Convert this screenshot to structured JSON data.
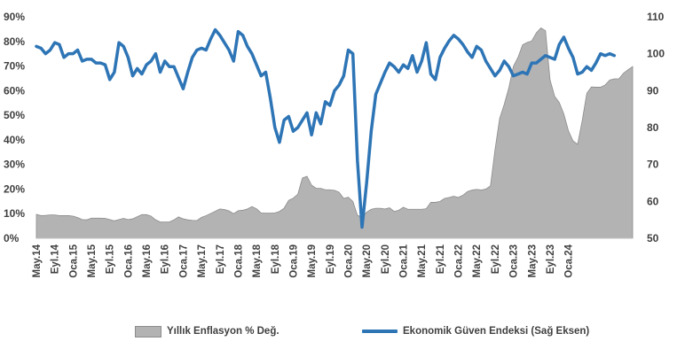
{
  "chart_data": {
    "type": "area+line",
    "x_labels": [
      "May.14",
      "Eyl.14",
      "Oca.15",
      "May.15",
      "Eyl.15",
      "Oca.16",
      "May.16",
      "Eyl.16",
      "Oca.17",
      "May.17",
      "Eyl.17",
      "Oca.18",
      "May.18",
      "Eyl.18",
      "Oca.19",
      "May.19",
      "Eyl.19",
      "Oca.20",
      "May.20",
      "Eyl.20",
      "Oca.21",
      "May.21",
      "Eyl.21",
      "Oca.22",
      "May.22",
      "Eyl.22",
      "Oca.23",
      "May.23",
      "Eyl.23",
      "Oca.24"
    ],
    "left_axis": {
      "ticks": [
        "0%",
        "10%",
        "20%",
        "30%",
        "40%",
        "50%",
        "60%",
        "70%",
        "80%",
        "90%"
      ],
      "min": 0,
      "max": 90
    },
    "right_axis": {
      "ticks": [
        "50",
        "60",
        "70",
        "80",
        "90",
        "100",
        "110"
      ],
      "min": 50,
      "max": 110
    },
    "legend_position": "bottom",
    "grid": false,
    "series": [
      {
        "name": "Yıllık Enflasyon % Değ.",
        "axis": "left",
        "type": "area",
        "color": "#b3b3b3",
        "values": [
          9.7,
          9.2,
          9.3,
          9.5,
          9.5,
          9.2,
          9.2,
          9.2,
          9.0,
          8.4,
          7.6,
          7.5,
          8.2,
          8.2,
          8.2,
          8.1,
          7.6,
          7.1,
          7.6,
          8.1,
          7.6,
          7.9,
          8.8,
          9.6,
          9.6,
          9.0,
          7.5,
          6.6,
          6.6,
          6.6,
          7.5,
          8.7,
          7.9,
          7.5,
          7.3,
          7.2,
          8.5,
          9.2,
          10.1,
          11.0,
          11.9,
          11.7,
          11.1,
          10.0,
          11.2,
          11.4,
          11.9,
          12.9,
          12.0,
          10.3,
          10.2,
          10.2,
          10.3,
          10.9,
          12.2,
          15.4,
          16.3,
          17.9,
          24.5,
          25.2,
          21.6,
          20.3,
          20.3,
          19.7,
          19.7,
          19.5,
          18.7,
          16.2,
          16.7,
          15.0,
          9.3,
          8.6,
          10.6,
          11.8,
          12.2,
          12.2,
          11.9,
          12.4,
          10.9,
          11.4,
          12.6,
          11.8,
          11.8,
          11.8,
          11.8,
          12.0,
          14.6,
          14.6,
          15.0,
          16.2,
          16.6,
          17.1,
          16.6,
          17.5,
          19.0,
          19.6,
          19.9,
          19.6,
          20.0,
          21.3,
          36.1,
          48.7,
          54.4,
          61.1,
          69.9,
          73.5,
          78.6,
          79.6,
          80.2,
          83.5,
          85.5,
          84.4,
          64.3,
          57.7,
          55.2,
          50.5,
          43.7,
          39.6,
          38.2,
          47.8,
          58.9,
          61.5,
          61.4,
          61.4,
          62.3,
          64.3,
          64.8,
          64.8,
          67.1,
          68.5,
          69.8
        ]
      },
      {
        "name": "Ekonomik Güven Endeksi (Sağ Eksen)",
        "axis": "right",
        "type": "line",
        "color": "#2e75b6",
        "values": [
          102,
          101.5,
          100,
          101,
          103,
          102.5,
          99,
          100,
          100,
          101,
          98,
          98.5,
          98.5,
          97.5,
          97.5,
          97,
          93,
          95,
          103,
          102,
          99,
          94,
          96,
          94.5,
          97,
          98,
          100,
          95,
          98,
          96.5,
          96.5,
          93.5,
          90.5,
          95,
          99,
          101,
          101.5,
          101,
          104,
          106.5,
          105,
          103,
          101,
          98,
          106,
          105,
          102,
          100,
          97,
          94,
          95,
          88,
          80,
          76,
          82,
          83,
          79,
          80,
          82,
          84,
          78,
          84,
          81,
          87,
          86,
          90,
          91.5,
          94,
          101,
          100,
          71,
          53,
          65,
          79,
          89,
          92,
          95,
          97.5,
          96.5,
          95,
          97,
          96,
          99.5,
          95,
          98,
          103,
          94.5,
          93,
          99,
          101.5,
          103.5,
          105,
          104,
          102.5,
          100.5,
          99,
          102,
          101,
          98,
          96,
          94,
          95.5,
          98,
          96.5,
          94,
          94.5,
          95,
          94.5,
          97.5,
          97.5,
          98.5,
          99.5,
          99,
          98.5,
          102.5,
          104.5,
          101.5,
          99,
          94.5,
          95,
          96.5,
          95.5,
          97.5,
          100,
          99.5,
          100,
          99.5
        ]
      }
    ]
  },
  "legend": {
    "area_label": "Yıllık Enflasyon % Değ.",
    "line_label": "Ekonomik Güven Endeksi (Sağ Eksen)"
  }
}
